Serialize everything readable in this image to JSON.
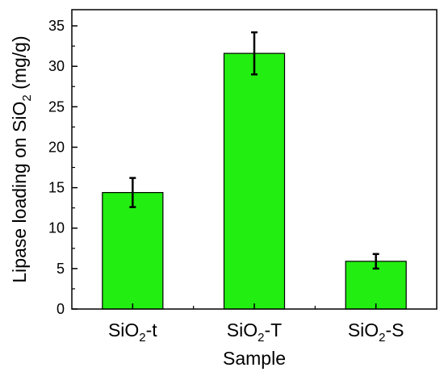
{
  "chart_data": {
    "type": "bar",
    "categories": [
      {
        "base": "SiO",
        "sub": "2",
        "suffix": "-t"
      },
      {
        "base": "SiO",
        "sub": "2",
        "suffix": "-T"
      },
      {
        "base": "SiO",
        "sub": "2",
        "suffix": "-S"
      }
    ],
    "values": [
      14.4,
      31.6,
      5.9
    ],
    "errors": [
      1.8,
      2.6,
      0.9
    ],
    "xlabel": "Sample",
    "ylabel": {
      "before": "Lipase loading on SiO",
      "sub": "2",
      "after": " (mg/g)"
    },
    "ylim": [
      0,
      37
    ],
    "yticks": [
      0,
      5,
      10,
      15,
      20,
      25,
      30,
      35
    ],
    "grid": false,
    "bar_color": "#22ee11",
    "edge_color": "#000000"
  }
}
